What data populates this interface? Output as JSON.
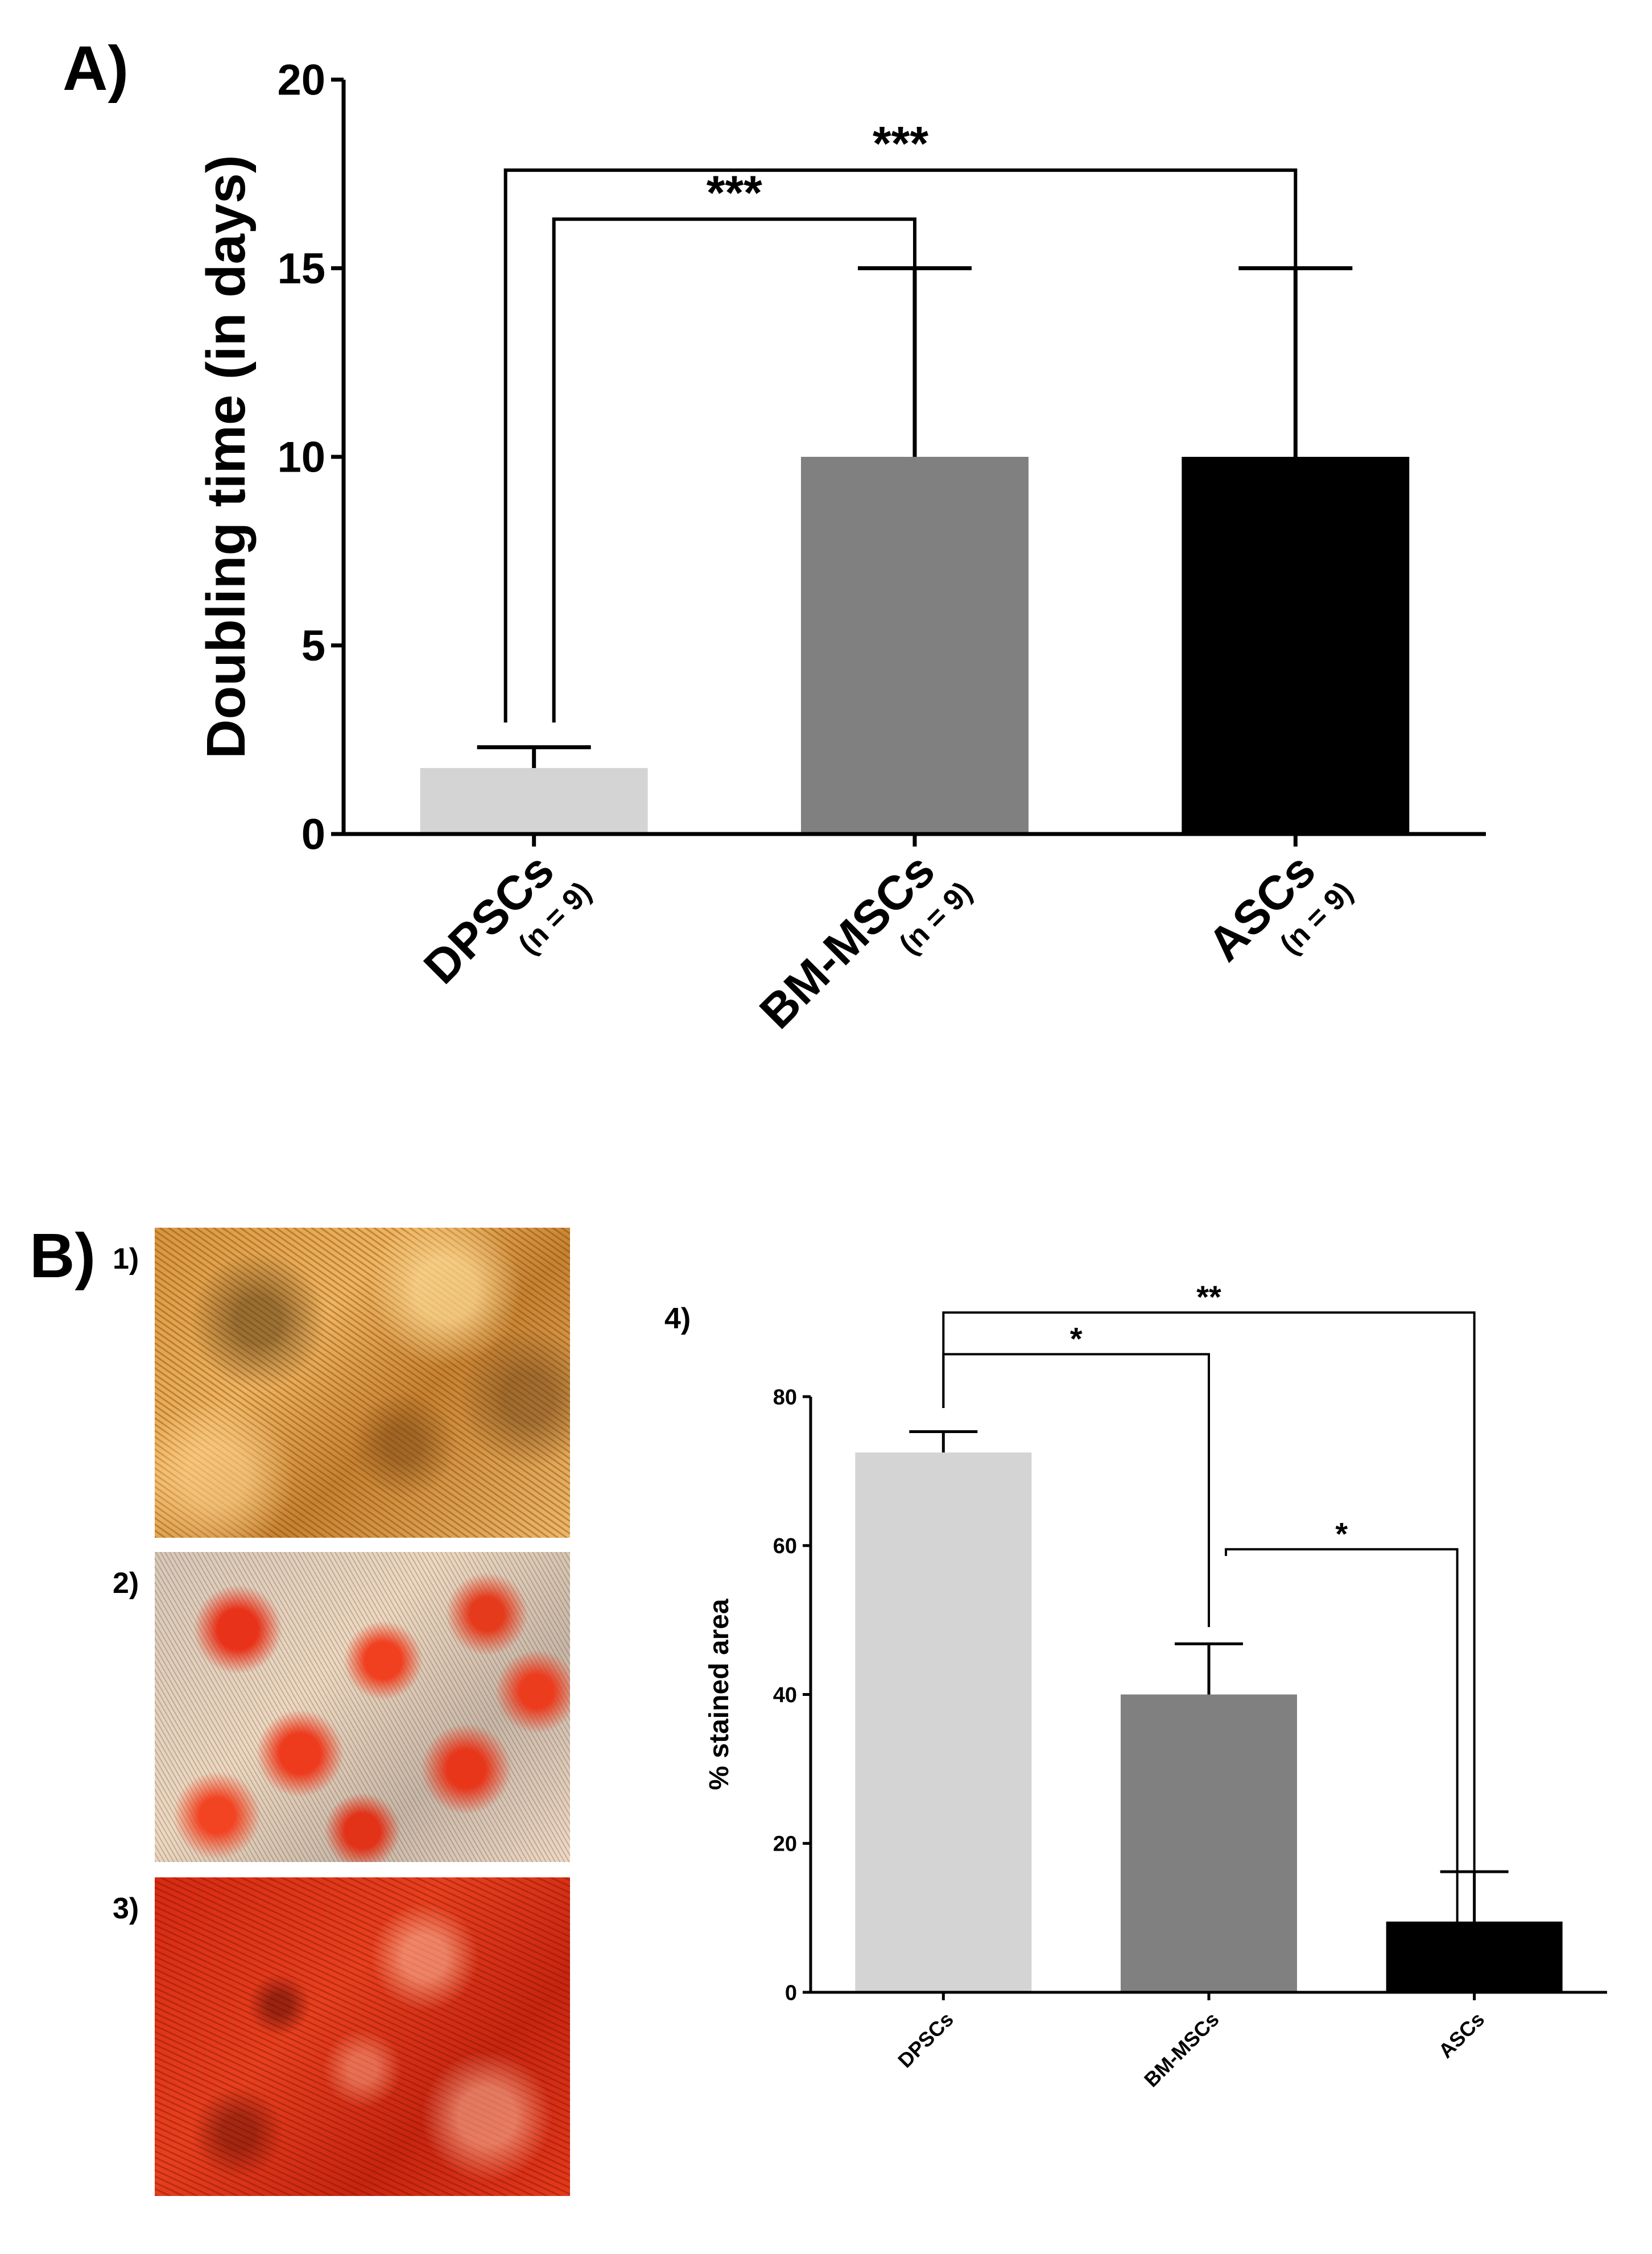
{
  "panel_a": {
    "label": "A)",
    "chart_data": {
      "type": "bar",
      "title": "",
      "xlabel": "",
      "ylabel": "Doubling time (in days)",
      "ylim": [
        0,
        20
      ],
      "yticks": [
        0,
        5,
        10,
        15,
        20
      ],
      "categories": [
        "DPSCs",
        "BM-MSCs",
        "ASCs"
      ],
      "category_sublabels": [
        "(n = 9)",
        "(n = 9)",
        "(n = 9)"
      ],
      "values": [
        1.75,
        10,
        10
      ],
      "error_upper": [
        2.3,
        15,
        15
      ],
      "colors": [
        "#d4d4d4",
        "#808080",
        "#000000"
      ],
      "significance": [
        {
          "from": "DPSCs",
          "to": "BM-MSCs",
          "label": "***"
        },
        {
          "from": "DPSCs",
          "to": "ASCs",
          "label": "***"
        }
      ]
    }
  },
  "panel_b": {
    "label": "B)",
    "micrographs": [
      {
        "label": "1)",
        "stain": "low staining"
      },
      {
        "label": "2)",
        "stain": "medium staining"
      },
      {
        "label": "3)",
        "stain": "high staining"
      }
    ],
    "chart_label": "4)",
    "chart_data": {
      "type": "bar",
      "title": "",
      "xlabel": "",
      "ylabel": "% stained area",
      "ylim": [
        0,
        80
      ],
      "yticks": [
        0,
        20,
        40,
        60,
        80
      ],
      "categories": [
        "DPSCs",
        "BM-MSCs",
        "ASCs"
      ],
      "values": [
        72.5,
        40,
        9.5
      ],
      "error_upper": [
        75.3,
        46.8,
        16.2
      ],
      "colors": [
        "#d4d4d4",
        "#808080",
        "#000000"
      ],
      "significance": [
        {
          "from": "DPSCs",
          "to": "BM-MSCs",
          "label": "*"
        },
        {
          "from": "DPSCs",
          "to": "ASCs",
          "label": "**"
        },
        {
          "from": "BM-MSCs",
          "to": "ASCs",
          "label": "*"
        }
      ]
    }
  }
}
